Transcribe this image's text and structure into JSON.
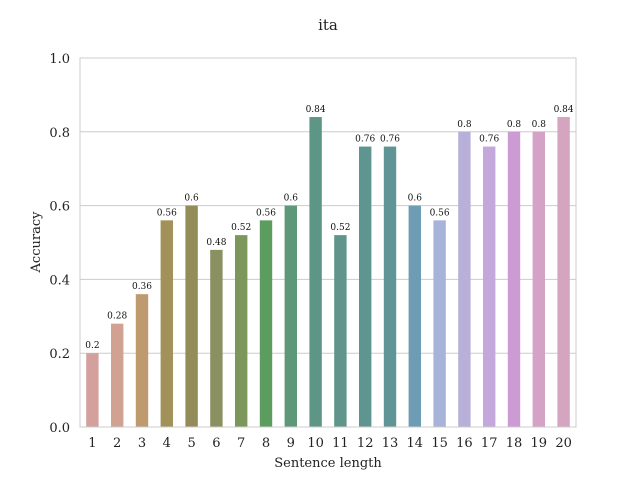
{
  "chart_data": {
    "type": "bar",
    "title": "ita",
    "xlabel": "Sentence length",
    "ylabel": "Accuracy",
    "ylim": [
      0,
      1.0
    ],
    "yticks": [
      "0.0",
      "0.2",
      "0.4",
      "0.6",
      "0.8",
      "1.0"
    ],
    "grid": true,
    "categories": [
      "1",
      "2",
      "3",
      "4",
      "5",
      "6",
      "7",
      "8",
      "9",
      "10",
      "11",
      "12",
      "13",
      "14",
      "15",
      "16",
      "17",
      "18",
      "19",
      "20"
    ],
    "values": [
      0.2,
      0.28,
      0.36,
      0.56,
      0.6,
      0.48,
      0.52,
      0.56,
      0.6,
      0.84,
      0.52,
      0.76,
      0.76,
      0.6,
      0.56,
      0.8,
      0.76,
      0.8,
      0.8,
      0.84
    ],
    "value_labels": [
      "0.2",
      "0.28",
      "0.36",
      "0.56",
      "0.6",
      "0.48",
      "0.52",
      "0.56",
      "0.6",
      "0.84",
      "0.52",
      "0.76",
      "0.76",
      "0.6",
      "0.56",
      "0.8",
      "0.76",
      "0.8",
      "0.8",
      "0.84"
    ],
    "colors": [
      "#d4a09e",
      "#d1a192",
      "#bd9b6e",
      "#a2925a",
      "#948c58",
      "#8a9060",
      "#7c975c",
      "#5d9c5f",
      "#5e9878",
      "#5e9685",
      "#5f958a",
      "#5f9591",
      "#5f9597",
      "#6d9cb4",
      "#a7b3d8",
      "#b8b0d8",
      "#c4a8db",
      "#cc9bd3",
      "#d4a2c7",
      "#d5a5bf"
    ]
  }
}
